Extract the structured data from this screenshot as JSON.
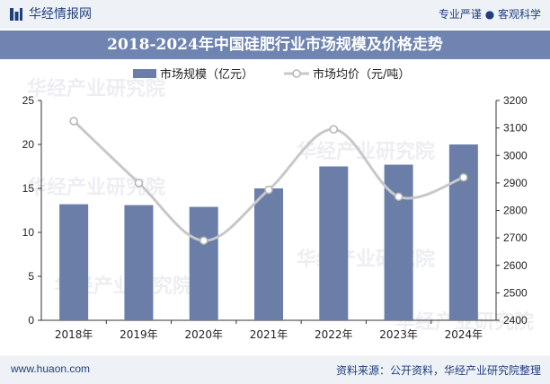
{
  "header": {
    "brand": "华经情报网",
    "slogan": "专业严谨 ● 客观科学"
  },
  "footer": {
    "website": "www.huaon.com",
    "source": "资料来源：公开资料，华经产业研究院整理"
  },
  "watermark": "华经产业研究院",
  "colors": {
    "bar": "#6a7ea8",
    "line": "#c8c8c8",
    "title_band": "#6f84b0",
    "header_band": "#eef2f7",
    "brand_text": "#1f3f7a"
  },
  "chart_data": {
    "type": "bar+line",
    "title": "2018-2024年中国硅肥行业市场规模及价格走势",
    "categories": [
      "2018年",
      "2019年",
      "2020年",
      "2021年",
      "2022年",
      "2023年",
      "2024年"
    ],
    "series": [
      {
        "name": "市场规模（亿元）",
        "type": "bar",
        "axis": "left",
        "values": [
          13.2,
          13.1,
          12.9,
          15.0,
          17.5,
          17.7,
          20.0
        ]
      },
      {
        "name": "市场均价（元/吨）",
        "type": "line",
        "axis": "right",
        "smooth": true,
        "values": [
          3125,
          2900,
          2690,
          2875,
          3095,
          2850,
          2920
        ]
      }
    ],
    "y_left": {
      "min": 0,
      "max": 25,
      "ticks": [
        "0",
        "5",
        "10",
        "15",
        "20",
        "25"
      ]
    },
    "y_right": {
      "min": 2400,
      "max": 3200,
      "ticks": [
        "2400",
        "2500",
        "2600",
        "2700",
        "2800",
        "2900",
        "3000",
        "3100",
        "3200"
      ]
    },
    "grid": false,
    "legend": "top"
  }
}
